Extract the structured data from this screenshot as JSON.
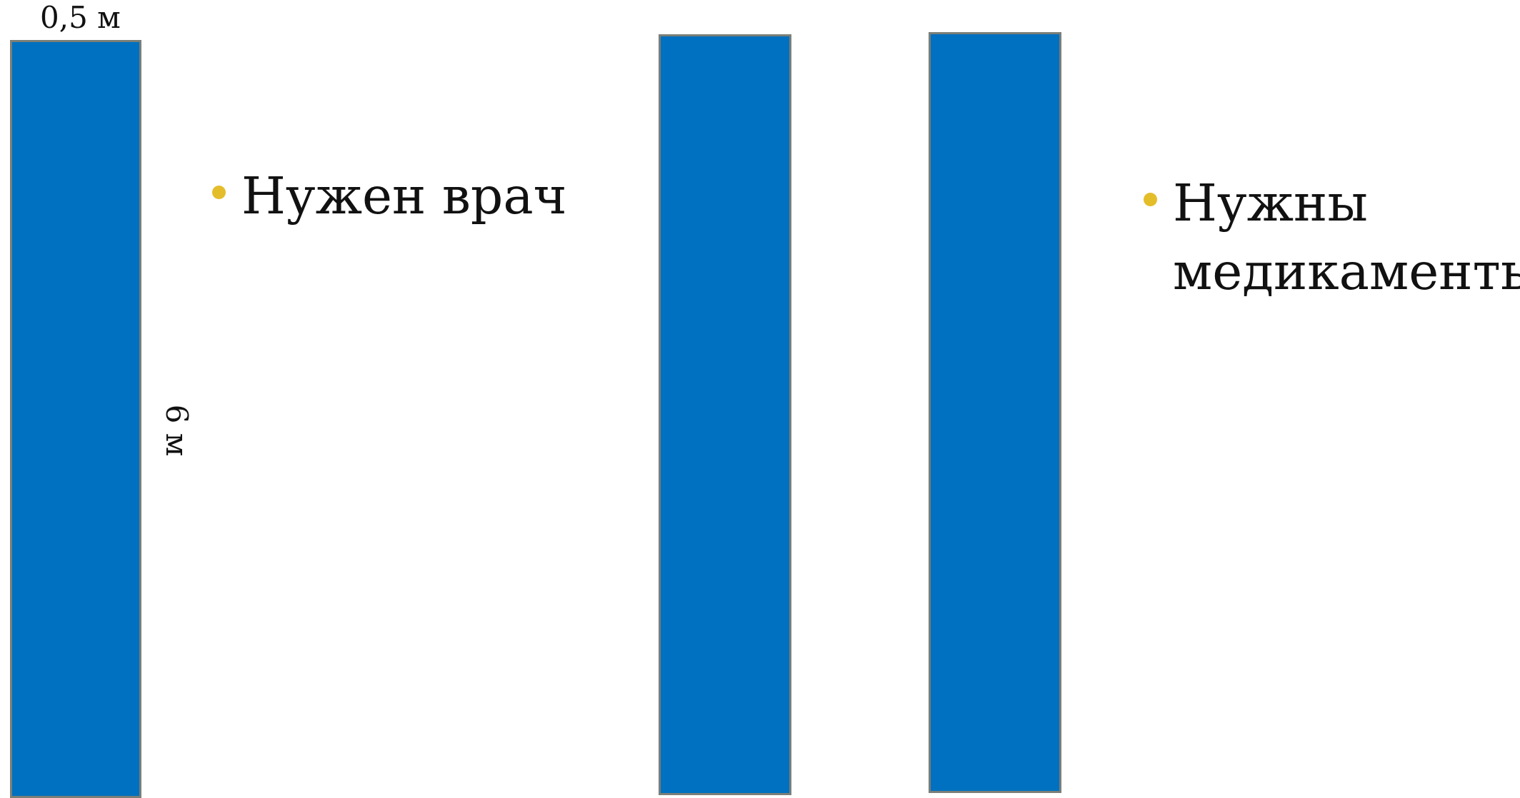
{
  "colors": {
    "bar_fill": "#0070c0",
    "bar_border": "#7a7f78",
    "bullet": "#e4bd2a"
  },
  "dimensions": {
    "width_label": "0,5 м",
    "height_label": "6 м"
  },
  "bullets": [
    {
      "text": "Нужен врач"
    },
    {
      "text": "Нужны\nмедикаменты"
    }
  ]
}
